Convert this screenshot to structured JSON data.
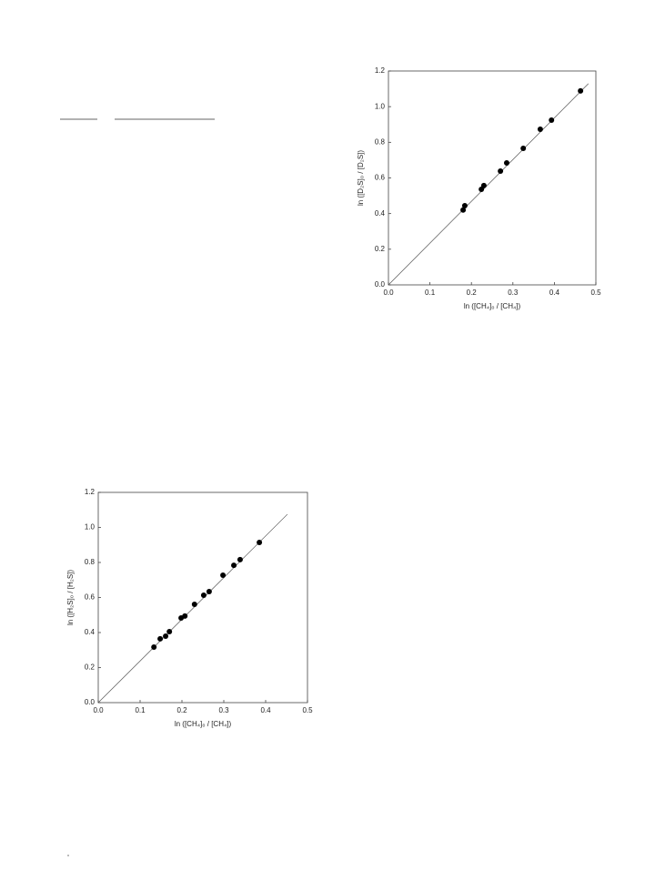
{
  "chart_data": [
    {
      "type": "scatter",
      "x_label": "ln ([CH₄]₀ / [CH₄])",
      "y_label": "ln ([D₂S]₀ / [D₂S])",
      "x": [
        0.18,
        0.184,
        0.224,
        0.23,
        0.27,
        0.285,
        0.325,
        0.366,
        0.393,
        0.463
      ],
      "values": [
        0.42,
        0.444,
        0.536,
        0.557,
        0.638,
        0.684,
        0.766,
        0.873,
        0.924,
        1.088
      ],
      "color": "#000000",
      "fit": {
        "x": [
          0,
          0.482
        ],
        "y": [
          0,
          1.129
        ]
      },
      "xlim": [
        0,
        0.5
      ],
      "ylim": [
        0,
        1.2
      ],
      "xticks": [
        {
          "value": 0,
          "label": "0.0"
        },
        0.1,
        0.2,
        0.3,
        0.4,
        0.5
      ],
      "yticks": [
        {
          "value": 0,
          "label": "0.0"
        },
        0.2,
        0.4,
        0.6,
        0.8,
        {
          "value": 1,
          "label": "1.0"
        },
        1.2
      ]
    },
    {
      "type": "scatter",
      "x_label": "ln ([CH₄]₀ / [CH₄])",
      "y_label": "ln ([H₂S]₀ / [H₂S])",
      "x": [
        0.133,
        0.148,
        0.161,
        0.17,
        0.198,
        0.207,
        0.23,
        0.252,
        0.265,
        0.298,
        0.324,
        0.339,
        0.385
      ],
      "values": [
        0.317,
        0.364,
        0.379,
        0.405,
        0.483,
        0.494,
        0.561,
        0.613,
        0.634,
        0.727,
        0.784,
        0.816,
        0.914
      ],
      "color": "#000000",
      "fit": {
        "x": [
          0,
          0.452
        ],
        "y": [
          0,
          1.075
        ]
      },
      "xlim": [
        0,
        0.5
      ],
      "ylim": [
        0,
        1.2
      ],
      "xticks": [
        {
          "value": 0,
          "label": "0.0"
        },
        0.1,
        0.2,
        0.3,
        0.4,
        0.5
      ],
      "yticks": [
        {
          "value": 0,
          "label": "0.0"
        },
        0.2,
        0.4,
        0.6,
        0.8,
        {
          "value": 1,
          "label": "1.0"
        },
        1.2
      ]
    }
  ]
}
